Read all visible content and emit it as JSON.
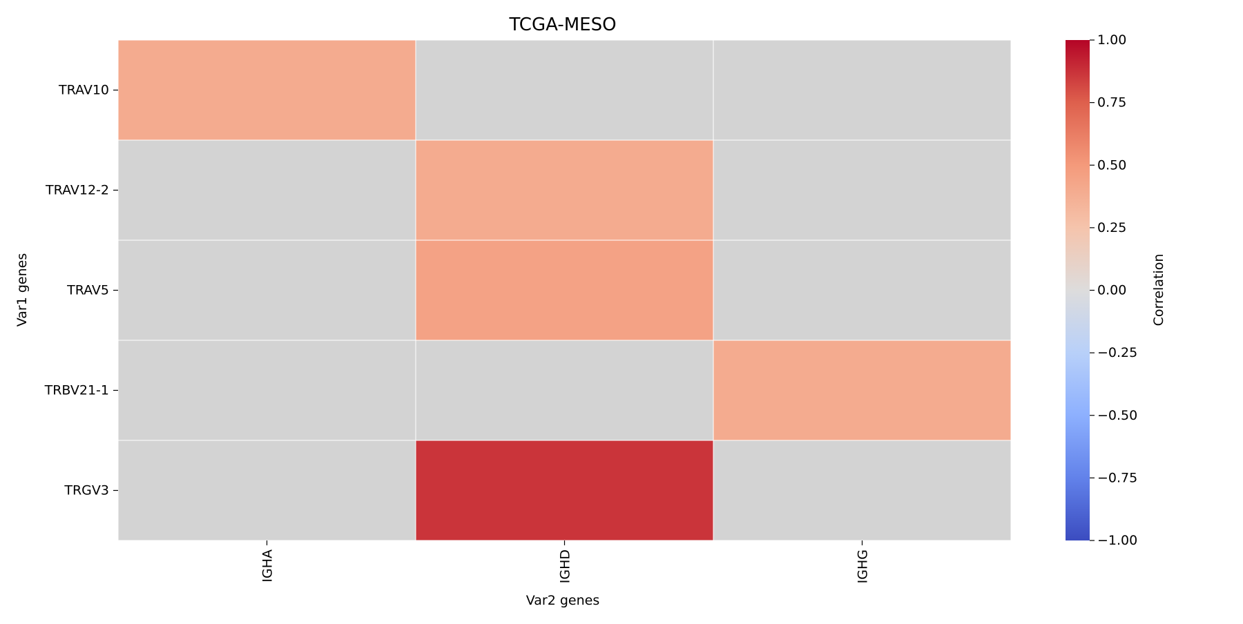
{
  "chart_data": {
    "type": "heatmap",
    "title": "TCGA-MESO",
    "xlabel": "Var2 genes",
    "ylabel": "Var1 genes",
    "x_categories": [
      "IGHA",
      "IGHD",
      "IGHG"
    ],
    "y_categories": [
      "TRAV10",
      "TRAV12-2",
      "TRAV5",
      "TRBV21-1",
      "TRGV3"
    ],
    "values": [
      [
        0.4,
        null,
        null
      ],
      [
        null,
        0.4,
        null
      ],
      [
        null,
        0.45,
        null
      ],
      [
        null,
        null,
        0.4
      ],
      [
        null,
        0.87,
        null
      ]
    ],
    "missing_color": "#d3d3d3",
    "colormap": "coolwarm",
    "vmin": -1.0,
    "vmax": 1.0,
    "colorbar": {
      "label": "Correlation",
      "ticks": [
        "1.00",
        "0.75",
        "0.50",
        "0.25",
        "0.00",
        "−0.25",
        "−0.50",
        "−0.75",
        "−1.00"
      ]
    }
  }
}
